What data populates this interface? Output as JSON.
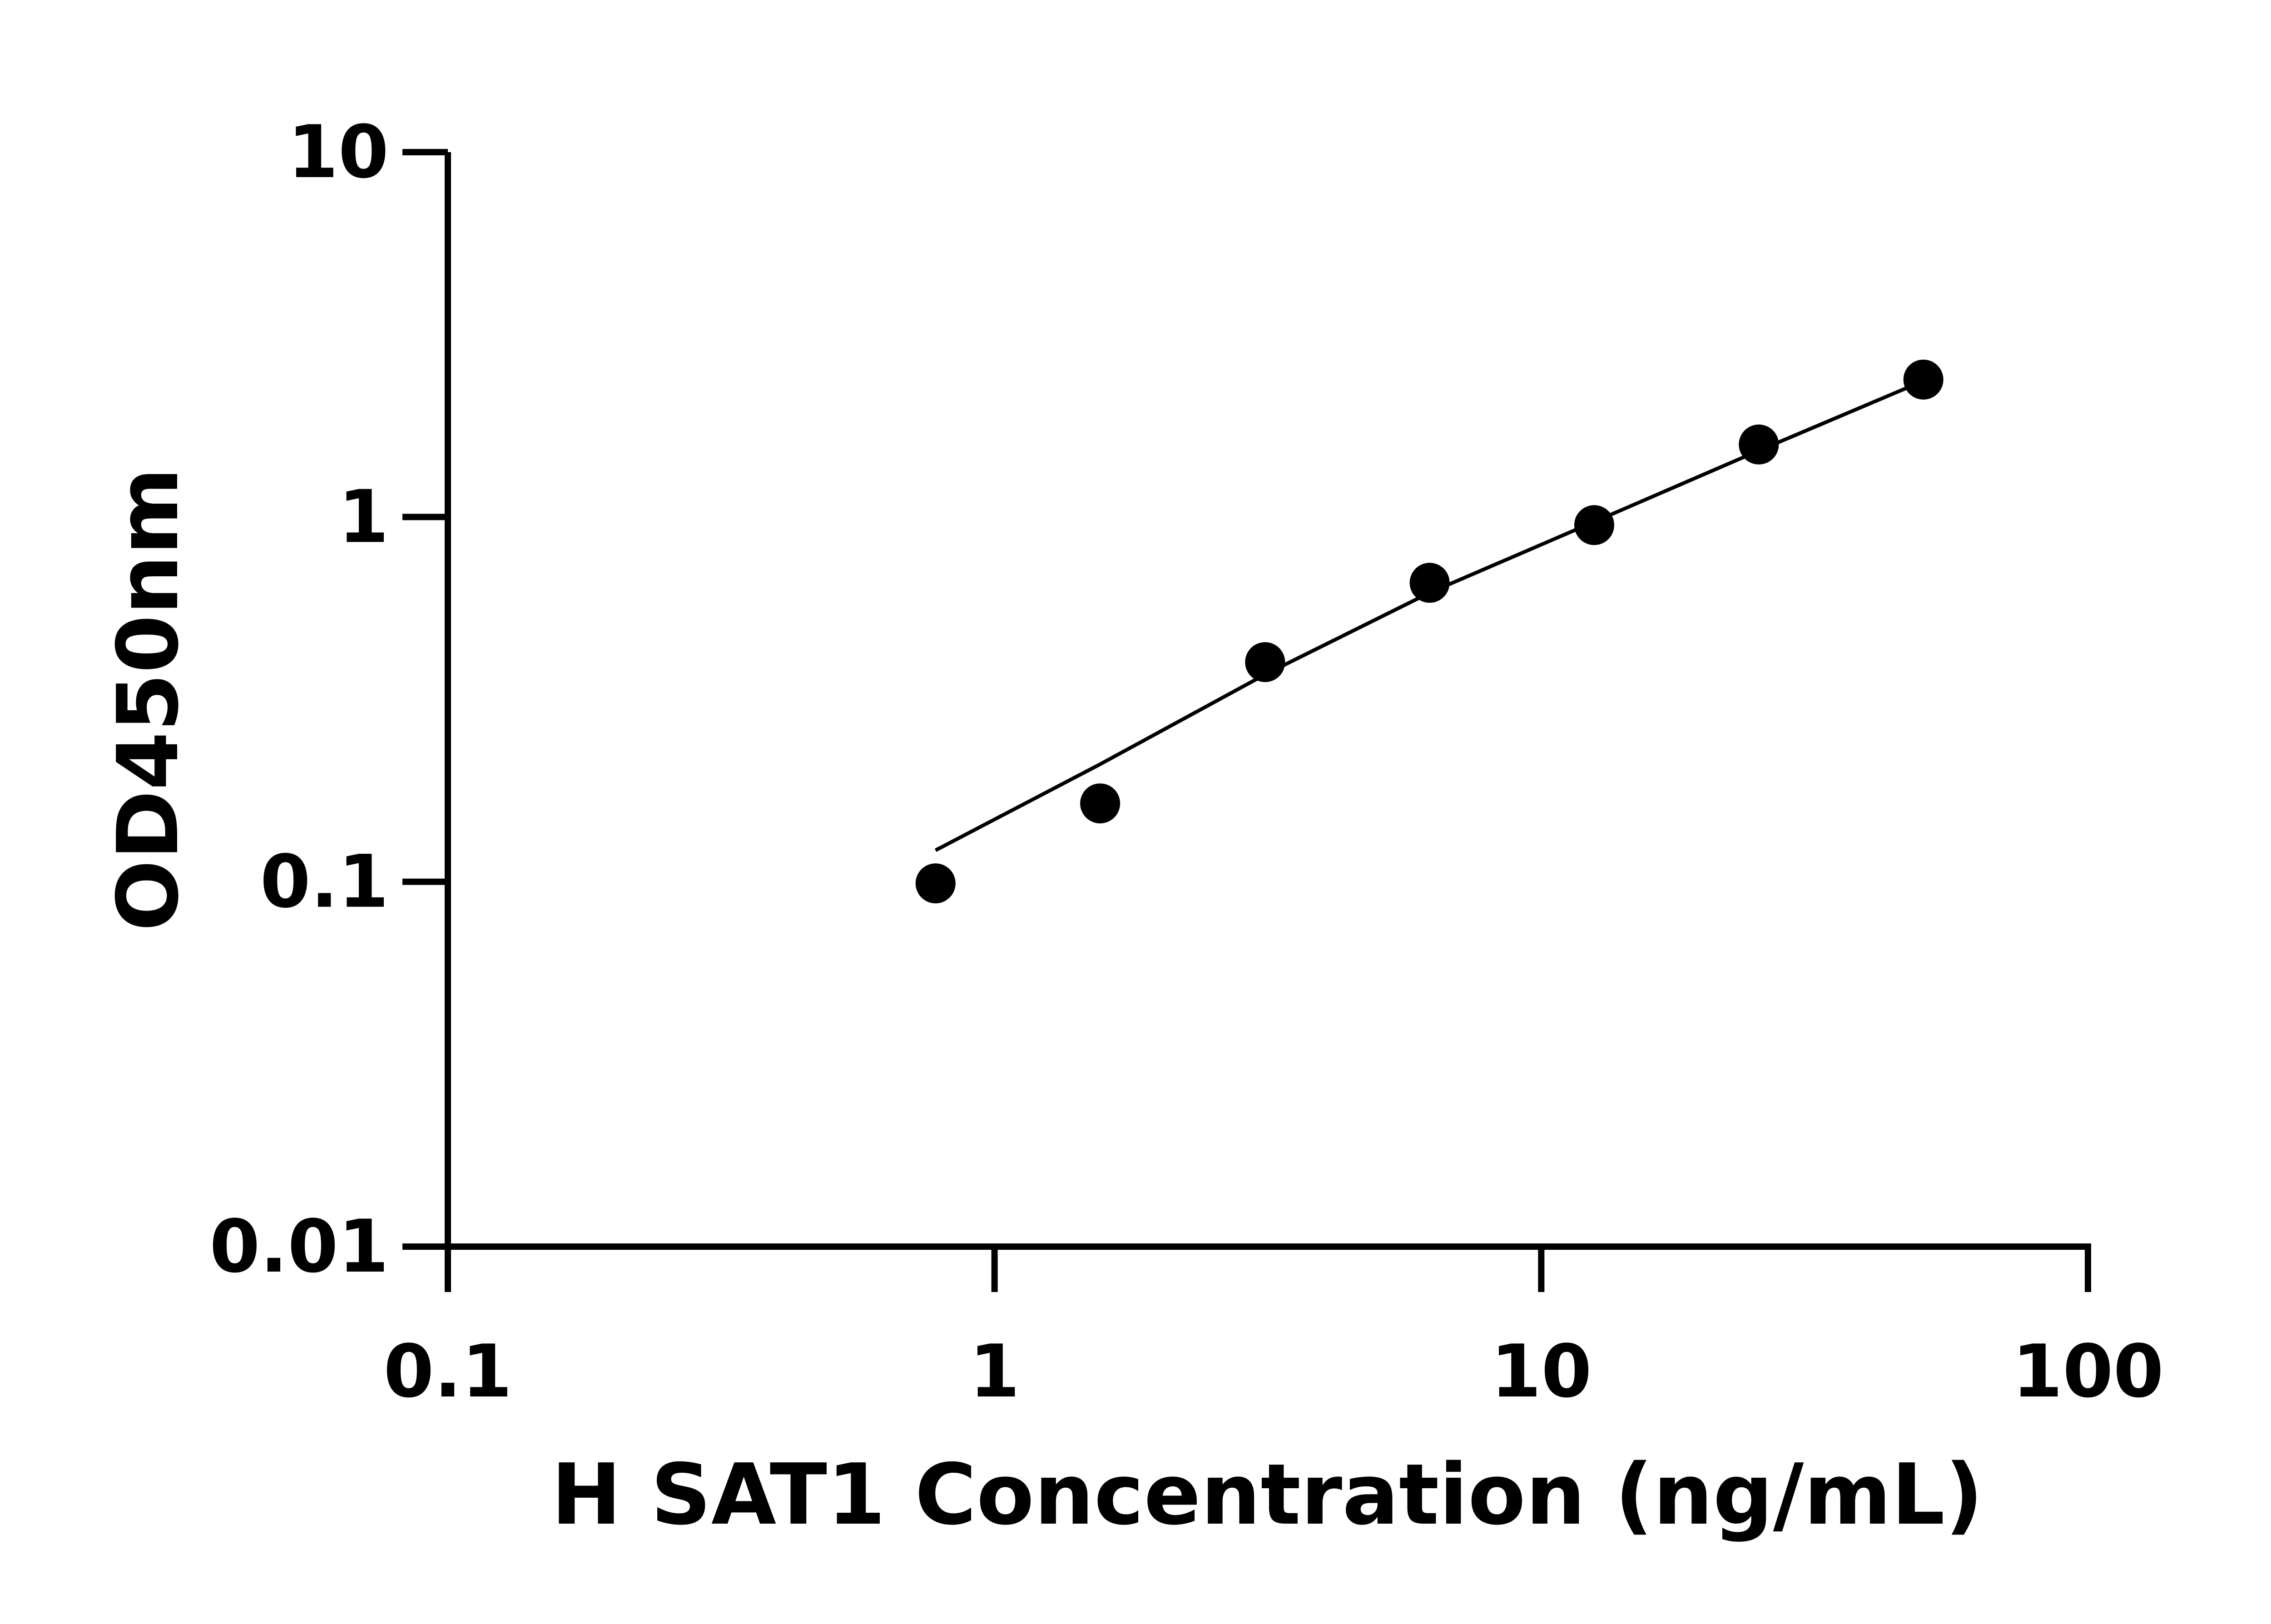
{
  "chart_data": {
    "type": "scatter",
    "title": "",
    "xlabel": "H SAT1 Concentration (ng/mL)",
    "ylabel": "OD450nm",
    "xscale": "log",
    "yscale": "log",
    "xlim": [
      0.1,
      100
    ],
    "ylim": [
      0.01,
      10
    ],
    "xticks": [
      "0.1",
      "1",
      "10",
      "100"
    ],
    "yticks": [
      "0.01",
      "0.1",
      "1",
      "10"
    ],
    "grid": false,
    "legend": "none",
    "points": {
      "x": [
        0.78,
        1.56,
        3.125,
        6.25,
        12.5,
        25,
        50
      ],
      "y": [
        0.099,
        0.164,
        0.4,
        0.66,
        0.95,
        1.58,
        2.38
      ]
    },
    "fit_curve": {
      "x": [
        0.78,
        1.56,
        3.125,
        6.25,
        12.5,
        25,
        50
      ],
      "y": [
        0.122,
        0.21,
        0.37,
        0.62,
        0.97,
        1.52,
        2.36
      ]
    },
    "colors": {
      "points": "#000000",
      "line": "#000000",
      "axes": "#000000"
    }
  }
}
